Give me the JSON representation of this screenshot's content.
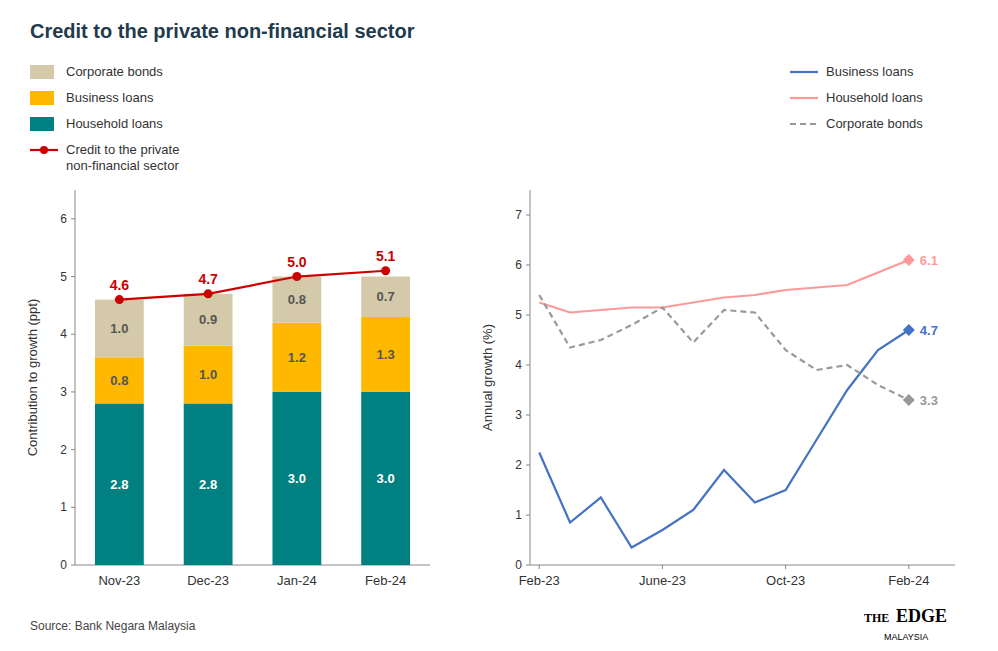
{
  "title": "Credit to the private non-financial sector",
  "annotations": [
    "Source: Bank Negara Malaysia",
    "THE",
    "EDGE",
    "MALAYSIA"
  ],
  "chart_data": [
    {
      "type": "bar",
      "stacked": true,
      "categories": [
        "Nov-23",
        "Dec-23",
        "Jan-24",
        "Feb-24"
      ],
      "series": [
        {
          "name": "Household loans",
          "color": "#008080",
          "values": [
            2.8,
            2.8,
            3.0,
            3.0
          ],
          "value_labels": [
            "2.8",
            "2.8",
            "3.0",
            "3.0"
          ]
        },
        {
          "name": "Business loans",
          "color": "#FFB800",
          "values": [
            0.8,
            1.0,
            1.2,
            1.3
          ],
          "value_labels": [
            "0.8",
            "1.0",
            "1.2",
            "1.3"
          ]
        },
        {
          "name": "Corporate bonds",
          "color": "#D4C9A8",
          "values": [
            1.0,
            0.9,
            0.8,
            0.7
          ],
          "value_labels": [
            "1.0",
            "0.9",
            "0.8",
            "0.7"
          ]
        },
        {
          "name": "Credit to the private\nnon-financial sector",
          "type": "line",
          "marker": "circle",
          "color": "#CC0000",
          "values": [
            4.6,
            4.7,
            5.0,
            5.1
          ],
          "value_labels": [
            "4.6",
            "4.7",
            "5.0",
            "5.1"
          ]
        }
      ],
      "ylabel": "Contribution to growth (ppt)",
      "ylim": [
        0,
        6.5
      ],
      "yticks": [
        0,
        1,
        2,
        3,
        4,
        5,
        6
      ],
      "grid": false,
      "legend": "upper left",
      "data_labels": true
    },
    {
      "type": "line",
      "x": [
        0,
        1,
        2,
        3,
        4,
        5,
        6,
        7,
        8,
        9,
        10,
        11,
        12
      ],
      "xlim": [
        -0.3,
        13.5
      ],
      "xticks": [
        {
          "value": 0,
          "label": "Feb-23"
        },
        {
          "value": 4,
          "label": "June-23"
        },
        {
          "value": 8,
          "label": "Oct-23"
        },
        {
          "value": 12,
          "label": "Feb-24"
        }
      ],
      "series": [
        {
          "name": "Business loans",
          "color": "#4472C4",
          "line_style": "solid",
          "marker": "diamond",
          "values": [
            2.25,
            0.85,
            1.35,
            0.35,
            0.7,
            1.1,
            1.9,
            1.25,
            1.5,
            2.5,
            3.5,
            4.3,
            4.7
          ],
          "value_labels": [
            null,
            null,
            null,
            null,
            null,
            null,
            null,
            null,
            null,
            null,
            null,
            null,
            "4.7"
          ]
        },
        {
          "name": "Household loans",
          "color": "#FF9999",
          "line_style": "solid",
          "marker": "diamond",
          "values": [
            5.25,
            5.05,
            5.1,
            5.15,
            5.15,
            5.25,
            5.35,
            5.4,
            5.5,
            5.55,
            5.6,
            5.85,
            6.1
          ],
          "value_labels": [
            null,
            null,
            null,
            null,
            null,
            null,
            null,
            null,
            null,
            null,
            null,
            null,
            "6.1"
          ]
        },
        {
          "name": "Corporate bonds",
          "color": "#999999",
          "line_style": "dashed",
          "marker": "diamond",
          "values": [
            5.4,
            4.35,
            4.5,
            4.8,
            5.15,
            4.45,
            5.1,
            5.05,
            4.3,
            3.9,
            4.0,
            3.6,
            3.3
          ],
          "value_labels": [
            null,
            null,
            null,
            null,
            null,
            null,
            null,
            null,
            null,
            null,
            null,
            null,
            "3.3"
          ]
        }
      ],
      "ylabel": "Annual growth (%)",
      "ylim": [
        0,
        7.5
      ],
      "yticks": [
        0,
        1,
        2,
        3,
        4,
        5,
        6,
        7
      ],
      "grid": false,
      "legend": "upper right",
      "data_labels": true
    }
  ]
}
